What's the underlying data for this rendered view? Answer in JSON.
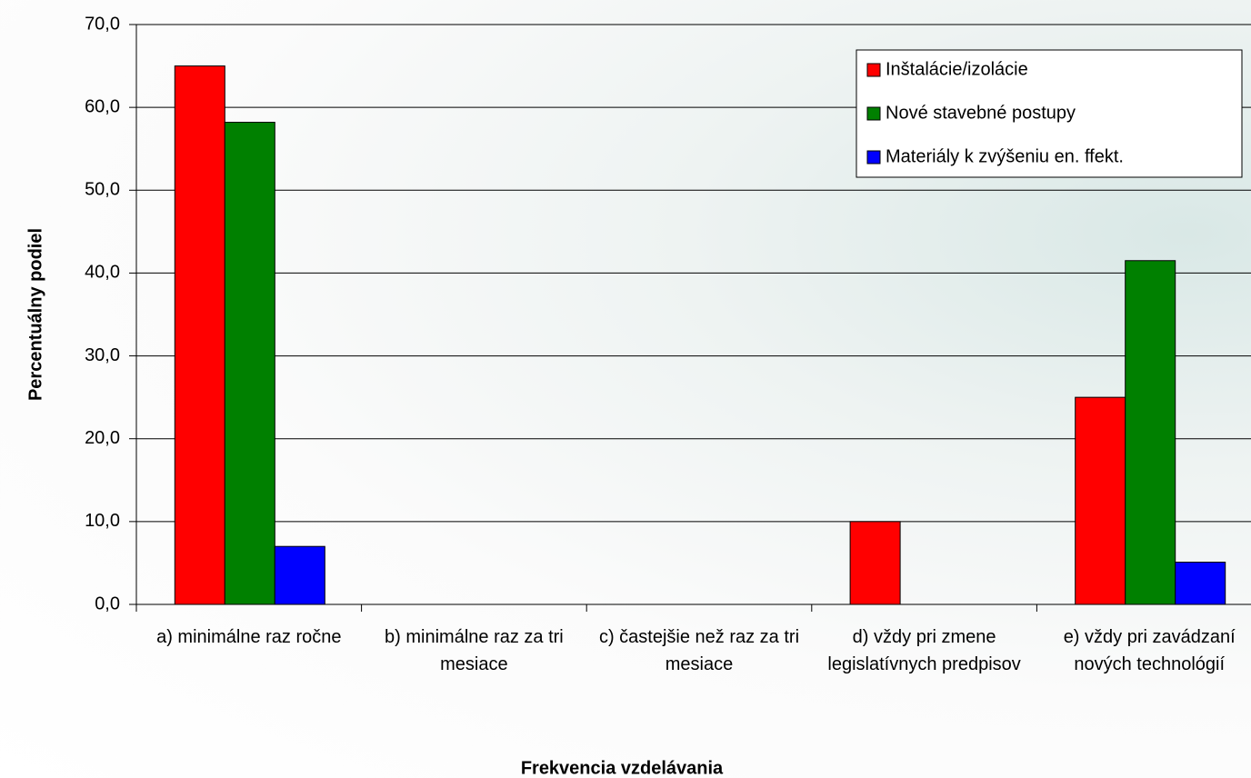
{
  "chart_data": {
    "type": "bar",
    "x_label": "Frekvencia vzdelávania",
    "y_label": "Percentuálny podiel",
    "categories": [
      "a)  minimálne raz ročne",
      "b)  minimálne raz za tri mesiace",
      "c)  častejšie než raz za tri mesiace",
      "d)  vždy pri zmene legislatívnych predpisov",
      "e)  vždy pri zavádzaní nových technológií"
    ],
    "series": [
      {
        "name": "Inštalácie/izolácie",
        "color": "#ff0000",
        "values": [
          65,
          0,
          0,
          10,
          25
        ]
      },
      {
        "name": "Nové stavebné postupy",
        "color": "#008000",
        "values": [
          58.2,
          0,
          0,
          0,
          41.5
        ]
      },
      {
        "name": "Materiály k zvýšeniu en. ffekt.",
        "color": "#0000ff",
        "values": [
          7,
          0,
          0,
          0,
          5.1
        ]
      }
    ],
    "ylim": [
      0,
      70
    ],
    "yticks": [
      {
        "value": 0,
        "label": "0,0"
      },
      {
        "value": 10,
        "label": "10,0"
      },
      {
        "value": 20,
        "label": "20,0"
      },
      {
        "value": 30,
        "label": "30,0"
      },
      {
        "value": 40,
        "label": "40,0"
      },
      {
        "value": 50,
        "label": "50,0"
      },
      {
        "value": 60,
        "label": "60,0"
      },
      {
        "value": 70,
        "label": "70,0"
      }
    ],
    "grid": true,
    "legend": "top-right"
  }
}
